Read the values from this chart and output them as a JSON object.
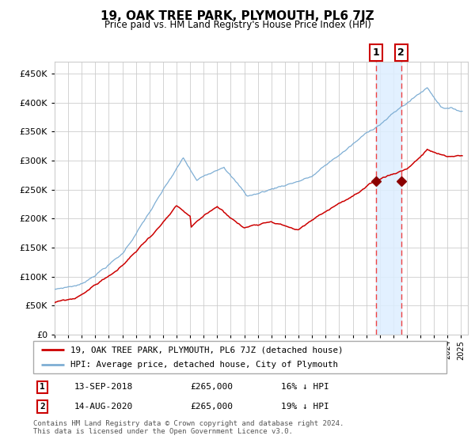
{
  "title": "19, OAK TREE PARK, PLYMOUTH, PL6 7JZ",
  "subtitle": "Price paid vs. HM Land Registry's House Price Index (HPI)",
  "legend_line1": "19, OAK TREE PARK, PLYMOUTH, PL6 7JZ (detached house)",
  "legend_line2": "HPI: Average price, detached house, City of Plymouth",
  "table_rows": [
    {
      "num": "1",
      "date": "13-SEP-2018",
      "price": "£265,000",
      "hpi": "16% ↓ HPI"
    },
    {
      "num": "2",
      "date": "14-AUG-2020",
      "price": "£265,000",
      "hpi": "19% ↓ HPI"
    }
  ],
  "footnote": "Contains HM Land Registry data © Crown copyright and database right 2024.\nThis data is licensed under the Open Government Licence v3.0.",
  "red_color": "#cc0000",
  "blue_color": "#7eaed4",
  "marker_color": "#8b0000",
  "vline_color": "#ee4444",
  "highlight_color": "#ddeeff",
  "grid_color": "#cccccc",
  "bg_color": "#ffffff",
  "ylim": [
    0,
    470000
  ],
  "yticks": [
    0,
    50000,
    100000,
    150000,
    200000,
    250000,
    300000,
    350000,
    400000,
    450000
  ],
  "sale1_year": 2018.708,
  "sale2_year": 2020.583,
  "sale1_price": 265000,
  "sale2_price": 265000
}
